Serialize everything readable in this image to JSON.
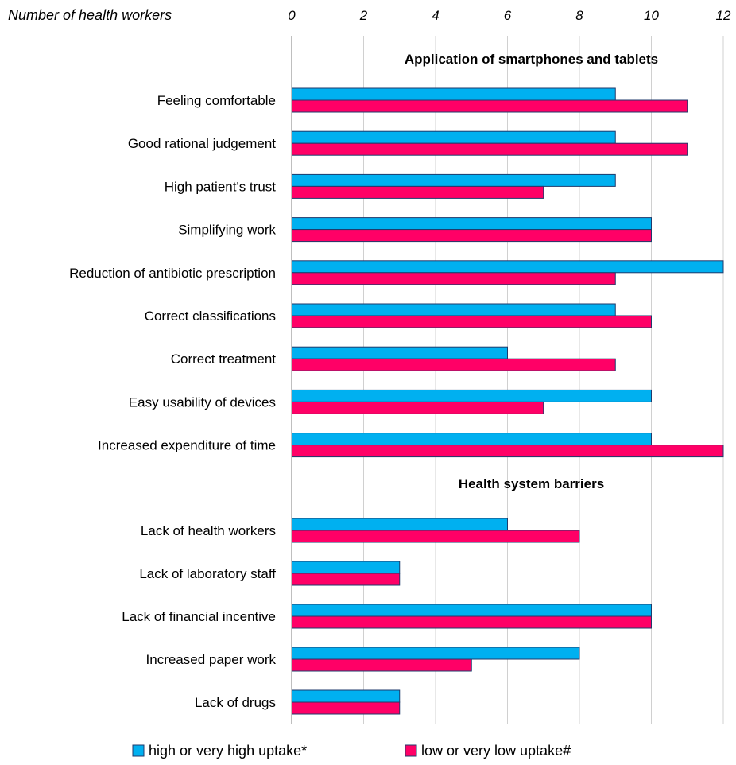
{
  "chart_data": {
    "type": "bar",
    "orientation": "horizontal",
    "xlabel": "Number of health workers",
    "xlim": [
      0,
      12
    ],
    "xticks": [
      0,
      2,
      4,
      6,
      8,
      10,
      12
    ],
    "grid": true,
    "legend_position": "bottom",
    "series": [
      {
        "name": "high or very high uptake*",
        "color": "#00b0f0"
      },
      {
        "name": "low or very low uptake#",
        "color": "#ff0066"
      }
    ],
    "groups": [
      {
        "title": "Application of smartphones and tablets",
        "items": [
          {
            "label": "Feeling comfortable",
            "values": [
              9,
              11
            ]
          },
          {
            "label": "Good rational judgement",
            "values": [
              9,
              11
            ]
          },
          {
            "label": "High patient's trust",
            "values": [
              9,
              7
            ]
          },
          {
            "label": "Simplifying work",
            "values": [
              10,
              10
            ]
          },
          {
            "label": "Reduction of antibiotic prescription",
            "values": [
              12,
              9
            ]
          },
          {
            "label": "Correct classifications",
            "values": [
              9,
              10
            ]
          },
          {
            "label": "Correct treatment",
            "values": [
              6,
              9
            ]
          },
          {
            "label": "Easy usability of devices",
            "values": [
              10,
              7
            ]
          },
          {
            "label": "Increased expenditure of time",
            "values": [
              10,
              12
            ]
          }
        ]
      },
      {
        "title": "Health system barriers",
        "items": [
          {
            "label": "Lack of health workers",
            "values": [
              6,
              8
            ]
          },
          {
            "label": "Lack of laboratory staff",
            "values": [
              3,
              3
            ]
          },
          {
            "label": "Lack of financial incentive",
            "values": [
              10,
              10
            ]
          },
          {
            "label": "Increased paper work",
            "values": [
              8,
              5
            ]
          },
          {
            "label": "Lack of drugs",
            "values": [
              3,
              3
            ]
          }
        ]
      }
    ]
  }
}
